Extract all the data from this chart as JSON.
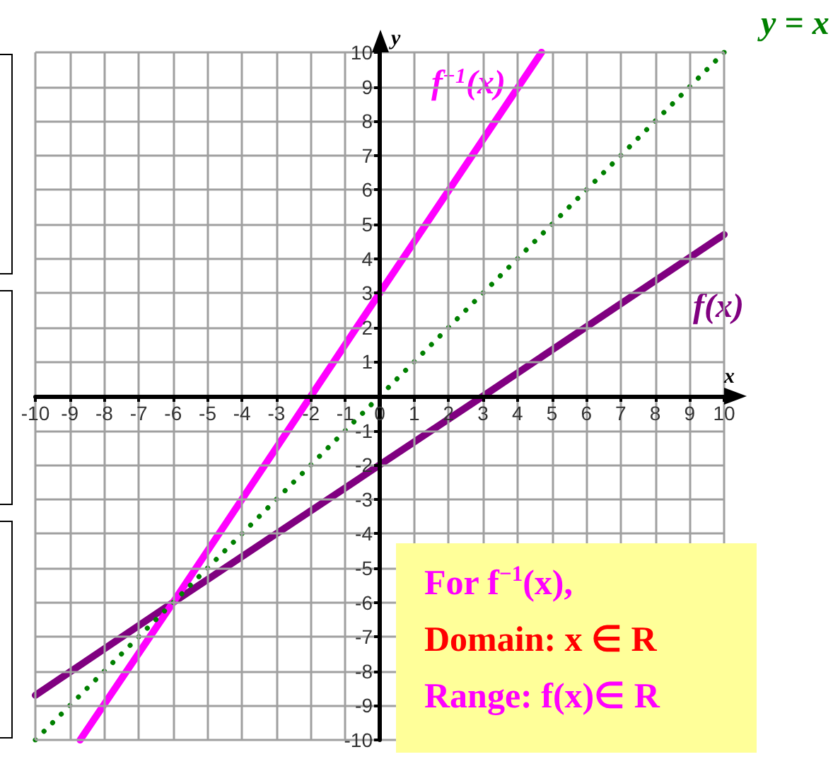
{
  "chart_data": {
    "type": "line",
    "xlabel": "x",
    "ylabel": "y",
    "xlim": [
      -10,
      10
    ],
    "ylim": [
      -10,
      10
    ],
    "xticks": [
      -10,
      -9,
      -8,
      -7,
      -6,
      -5,
      -4,
      -3,
      -2,
      -1,
      0,
      1,
      2,
      3,
      4,
      5,
      6,
      7,
      8,
      9,
      10
    ],
    "yticks": [
      -10,
      -9,
      -8,
      -7,
      -6,
      -5,
      -4,
      -3,
      -2,
      -1,
      {
        "value": 0,
        "label": null
      },
      1,
      2,
      3,
      4,
      5,
      6,
      7,
      8,
      9,
      10
    ],
    "grid": true,
    "marker": "none",
    "series": [
      {
        "name": "f(x)",
        "color": "#800080",
        "line_style": "solid",
        "x": [
          -10,
          -6,
          0,
          3,
          10
        ],
        "values": [
          -8.7,
          -6,
          -2,
          0,
          4.7
        ]
      },
      {
        "name": "f$^{−1}$(x)",
        "color": "#ff00ff",
        "line_style": "solid",
        "x": [
          -8.7,
          -6,
          -2,
          0,
          4.7
        ],
        "values": [
          -10,
          -6,
          0,
          3,
          10
        ]
      },
      {
        "name": "y = x",
        "color": "#008000",
        "line_style": "dotted",
        "x": [
          -10,
          10
        ],
        "values": [
          -10,
          10
        ]
      }
    ],
    "annotations": [
      "For f$^{−1}$(x),",
      "Domain: x ∈ R",
      "Range: f(x)∈ R"
    ]
  }
}
